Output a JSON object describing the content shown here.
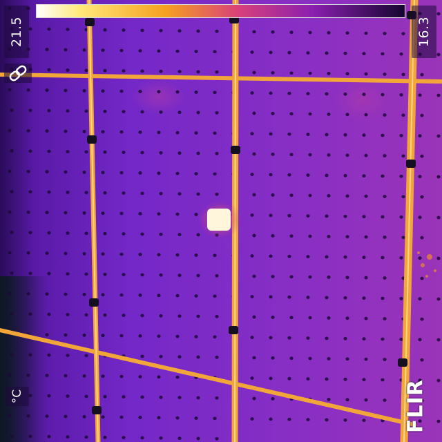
{
  "camera": {
    "brand": "FLIR",
    "unit": "°C",
    "range_max": "21.5",
    "range_min": "16.3",
    "link_icon": "link-icon"
  },
  "colors": {
    "palette": [
      "#ffffff",
      "#ffe97a",
      "#ffb020",
      "#f06a18",
      "#c8287c",
      "#8a1fb0",
      "#4c0c8c",
      "#1a0640"
    ],
    "background": "#7a28c8",
    "hot_spot": "#fff6dc",
    "strut": "#f2a63a"
  }
}
